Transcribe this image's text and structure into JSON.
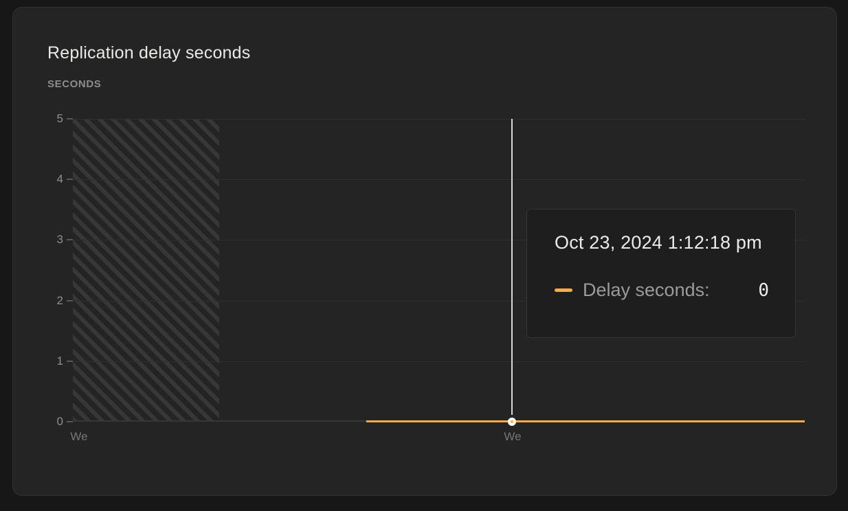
{
  "card": {
    "title": "Replication delay seconds",
    "unit_label": "SECONDS"
  },
  "chart_data": {
    "type": "line",
    "title": "Replication delay seconds",
    "ylabel": "SECONDS",
    "ylim": [
      0,
      5
    ],
    "ytick_labels_top_to_bottom": [
      "5",
      "4",
      "3",
      "2",
      "1",
      "0"
    ],
    "xtick_labels": [
      "We",
      "We"
    ],
    "grid": "horizontal",
    "legend_position": "none",
    "series": [
      {
        "name": "Delay seconds",
        "color": "#f8ac49",
        "value_constant": 0,
        "x_extent_fraction": [
          0.4,
          1.0
        ]
      }
    ],
    "no_data_hatch_region_fraction": [
      0.0,
      0.2
    ],
    "hovered_point": {
      "x_fraction": 0.6,
      "y": 0
    }
  },
  "tooltip": {
    "timestamp": "Oct 23, 2024 1:12:18 pm",
    "series_label": "Delay seconds:",
    "value": "0",
    "swatch_color": "#f8ac49"
  }
}
